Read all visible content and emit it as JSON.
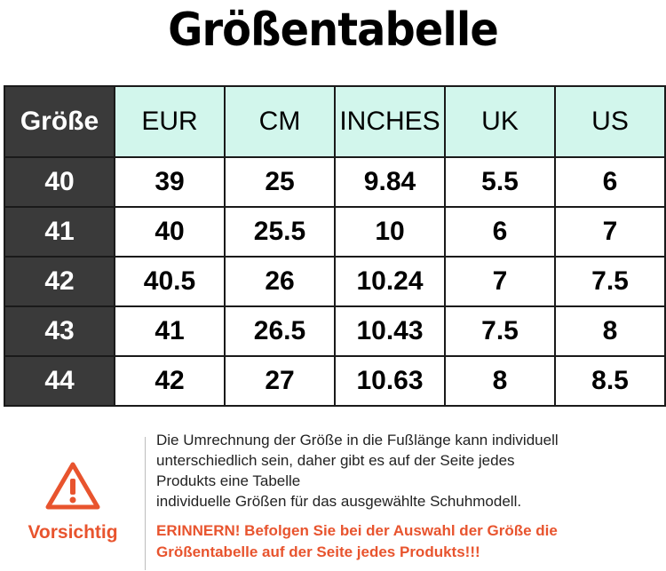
{
  "title": "Größentabelle",
  "table": {
    "headers": [
      "Größe",
      "EUR",
      "CM",
      "INCHES",
      "UK",
      "US"
    ],
    "rows": [
      [
        "40",
        "39",
        "25",
        "9.84",
        "5.5",
        "6"
      ],
      [
        "41",
        "40",
        "25.5",
        "10",
        "6",
        "7"
      ],
      [
        "42",
        "40.5",
        "26",
        "10.24",
        "7",
        "7.5"
      ],
      [
        "43",
        "41",
        "26.5",
        "10.43",
        "7.5",
        "8"
      ],
      [
        "44",
        "42",
        "27",
        "10.63",
        "8",
        "8.5"
      ]
    ]
  },
  "notice": {
    "icon": "warning-triangle-icon",
    "label": "Vorsichtig",
    "info_lines": [
      "Die Umrechnung der Größe in die Fußlänge kann individuell",
      "unterschiedlich sein, daher gibt es auf der Seite jedes",
      "Produkts eine Tabelle",
      "individuelle Größen für das ausgewählte Schuhmodell."
    ],
    "reminder_lines": [
      "ERINNERN! Befolgen Sie bei der Auswahl der Größe die",
      "Größentabelle auf der Seite jedes Produkts!!!"
    ]
  },
  "colors": {
    "header_bg": "#d2f6ec",
    "row_header_bg": "#3a3a3a",
    "accent": "#e8542e"
  }
}
